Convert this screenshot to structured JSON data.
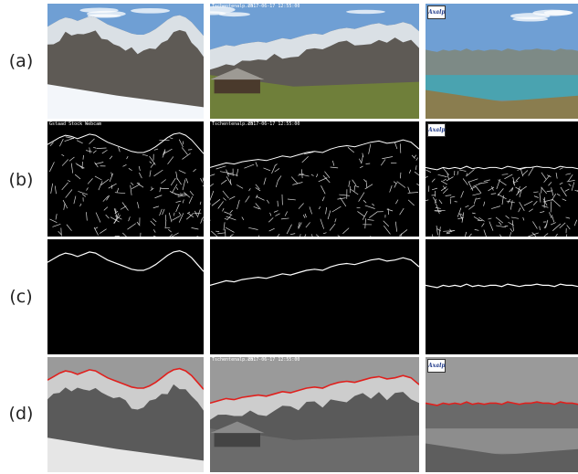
{
  "rows": [
    {
      "label": "(a)",
      "kind": "photo"
    },
    {
      "label": "(b)",
      "kind": "edges"
    },
    {
      "label": "(c)",
      "kind": "skyline"
    },
    {
      "label": "(d)",
      "kind": "overlay"
    }
  ],
  "columns": [
    {
      "stamp_left": "",
      "stamp_right": "",
      "edge_stamp_left": "Gstaad Stock Webcam",
      "edge_stamp_right": "",
      "has_logo": false,
      "skyline": [
        0.2,
        0.17,
        0.14,
        0.12,
        0.13,
        0.15,
        0.13,
        0.11,
        0.12,
        0.15,
        0.18,
        0.2,
        0.22,
        0.24,
        0.26,
        0.27,
        0.27,
        0.25,
        0.22,
        0.18,
        0.14,
        0.11,
        0.1,
        0.12,
        0.16,
        0.22,
        0.28
      ]
    },
    {
      "stamp_left": "Tschentenalp.ch",
      "stamp_right": "2017-06-17 12:55:00",
      "edge_stamp_left": "Tschentenalp.ch",
      "edge_stamp_right": "2017-06-17 12:55:00",
      "has_logo": false,
      "skyline": [
        0.4,
        0.38,
        0.36,
        0.37,
        0.35,
        0.34,
        0.33,
        0.34,
        0.32,
        0.3,
        0.31,
        0.29,
        0.27,
        0.26,
        0.27,
        0.24,
        0.22,
        0.21,
        0.22,
        0.2,
        0.18,
        0.17,
        0.19,
        0.18,
        0.16,
        0.18,
        0.24
      ]
    },
    {
      "stamp_left": "",
      "stamp_right": "",
      "edge_stamp_left": "",
      "edge_stamp_right": "",
      "has_logo": true,
      "logo_text": "Axalp",
      "skyline": [
        0.4,
        0.41,
        0.42,
        0.4,
        0.41,
        0.4,
        0.41,
        0.39,
        0.41,
        0.4,
        0.41,
        0.4,
        0.4,
        0.41,
        0.39,
        0.4,
        0.41,
        0.4,
        0.4,
        0.39,
        0.4,
        0.4,
        0.41,
        0.39,
        0.4,
        0.4,
        0.41
      ]
    }
  ],
  "colors": {
    "sky_blue": "#6f9fd4",
    "snow": "#e8eef5",
    "rock": "#5e5a55",
    "grass": "#6f7f3a",
    "lake": "#4aa3b0",
    "skyline_line": "#ffffff",
    "overlay_line": "#e0201d"
  }
}
